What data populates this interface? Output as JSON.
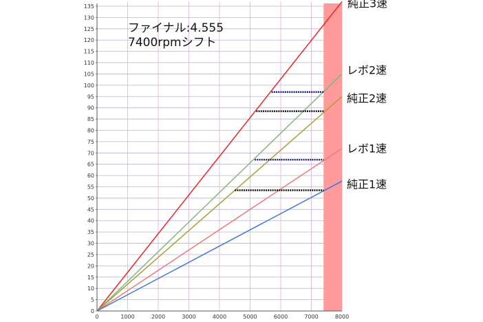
{
  "chart_data": {
    "type": "line",
    "title": "",
    "xlabel": "",
    "ylabel": "",
    "xlim": [
      0,
      8000
    ],
    "ylim": [
      0,
      137
    ],
    "x_ticks": [
      0,
      1000,
      2000,
      3000,
      4000,
      5000,
      6000,
      7000,
      8000
    ],
    "y_ticks": [
      0,
      5,
      10,
      15,
      20,
      25,
      30,
      35,
      40,
      45,
      50,
      55,
      60,
      65,
      70,
      75,
      80,
      85,
      90,
      95,
      100,
      105,
      110,
      115,
      120,
      125,
      130,
      135
    ],
    "grid": true,
    "annotations": [
      "ファイナル:4.555",
      "7400rpmシフト"
    ],
    "shaded_region": {
      "x_from": 7400,
      "x_to": 8000,
      "color": "#ff9a9a"
    },
    "series": [
      {
        "name": "純正3速",
        "color": "#ee2222",
        "x": [
          0,
          8000
        ],
        "y": [
          0,
          137
        ]
      },
      {
        "name": "レボ2速",
        "color": "#7fb87f",
        "x": [
          0,
          8000
        ],
        "y": [
          0,
          105
        ]
      },
      {
        "name": "純正2速",
        "color": "#a8a030",
        "x": [
          0,
          8000
        ],
        "y": [
          0,
          95
        ]
      },
      {
        "name": "レボ1速",
        "color": "#f07878",
        "x": [
          0,
          8000
        ],
        "y": [
          0,
          72
        ]
      },
      {
        "name": "純正1速",
        "color": "#3a78e0",
        "x": [
          0,
          8000
        ],
        "y": [
          0,
          57.5
        ]
      }
    ],
    "shift_markers": [
      {
        "color": "#1a1a90",
        "x": [
          5700,
          7400
        ],
        "y": 97
      },
      {
        "color": "#111111",
        "x": [
          5200,
          7400
        ],
        "y": 88.5
      },
      {
        "color": "#1a1a90",
        "x": [
          5150,
          7400
        ],
        "y": 67
      },
      {
        "color": "#111111",
        "x": [
          4500,
          7400
        ],
        "y": 53.5
      }
    ]
  }
}
